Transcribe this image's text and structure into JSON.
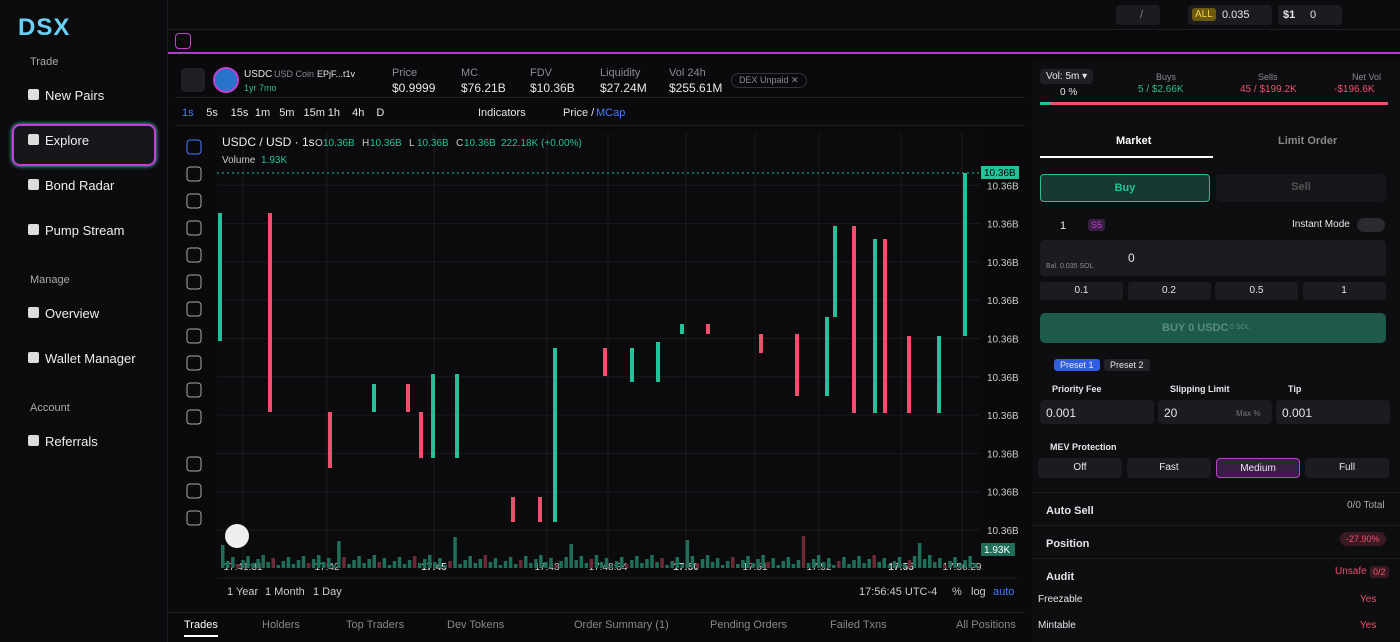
{
  "sidebar": {
    "logo": "DSX",
    "sections": [
      {
        "title": "Trade",
        "items": [
          "New Pairs",
          "Explore",
          "Bond Radar",
          "Pump Stream"
        ]
      },
      {
        "title": "Manage",
        "items": [
          "Overview",
          "Wallet Manager"
        ]
      },
      {
        "title": "Account",
        "items": [
          "Referrals"
        ]
      }
    ]
  },
  "topbar": {
    "search_key": "/",
    "all_label": "ALL",
    "all_value": "0.035",
    "s_label": "$1",
    "s_value": "0"
  },
  "token": {
    "symbol": "USDC",
    "name": "USD Coin",
    "address": "EPjF...t1v",
    "age": "1yr 7mo",
    "stats": [
      {
        "label": "Price",
        "value": "$0.9999"
      },
      {
        "label": "MC",
        "value": "$76.21B"
      },
      {
        "label": "FDV",
        "value": "$10.36B"
      },
      {
        "label": "Liquidity",
        "value": "$27.24M"
      },
      {
        "label": "Vol 24h",
        "value": "$255.61M"
      }
    ],
    "dex": "DEX Unpaid ✕"
  },
  "chart_toolbar": {
    "intervals": [
      "1s",
      "5s",
      "15s",
      "1m",
      "5m",
      "15m",
      "1h",
      "4h",
      "D"
    ],
    "indicators": "Indicators",
    "price": "Price /",
    "mcap": "MCap"
  },
  "chart": {
    "pair": "USDC / USD · 1s",
    "ohlc": [
      {
        "key": "O",
        "value": "10.36B"
      },
      {
        "key": "H",
        "value": "10.36B"
      },
      {
        "key": "L",
        "value": "10.36B"
      },
      {
        "key": "C",
        "value": "10.36B"
      }
    ],
    "change": "222.18K (+0.00%)",
    "volume_label": "Volume",
    "volume_value": "1.93K",
    "yticks": [
      "10.36B",
      "10.36B",
      "10.36B",
      "10.36B",
      "10.36B",
      "10.36B",
      "10.36B",
      "10.36B",
      "10.36B",
      "10.36B"
    ],
    "price_tag": "10.36B",
    "vol_tag": "1.93K",
    "xticks": [
      "17:41:31",
      "17:42",
      "17:45",
      "17:48",
      "17:48:34",
      "17:50",
      "17:51",
      "17:52",
      "17:55",
      "17:56:29"
    ]
  },
  "chart_footer": {
    "ranges": [
      "1 Year",
      "1 Month",
      "1 Day"
    ],
    "clock": "17:56:45 UTC-4",
    "pct": "%",
    "log": "log",
    "auto": "auto"
  },
  "bottom_tabs": [
    "Trades",
    "Holders",
    "Top Traders",
    "Dev Tokens",
    "Order Summary (1)",
    "Pending Orders",
    "Failed Txns",
    "All Positions"
  ],
  "panel": {
    "vol": "Vol: 5m ▾",
    "vol_pct": "0 %",
    "buys_label": "Buys",
    "buys": "5 / $2.66K",
    "sells_label": "Sells",
    "sells": "45 / $199.2K",
    "net_label": "Net Vol",
    "net": "-$196.6K",
    "order_tabs": [
      "Market",
      "Limit Order"
    ],
    "sides": [
      "Buy",
      "Sell"
    ],
    "wallet_count": "1",
    "preset_tag": "S5",
    "instant": "Instant Mode",
    "bal": "Bal. 0.035 SOL",
    "amount": "0",
    "quick": [
      "0.1",
      "0.2",
      "0.5",
      "1"
    ],
    "buy_button": "BUY 0 USDC",
    "buy_sub": "0 SOL",
    "presets": [
      "Preset 1",
      "Preset 2"
    ],
    "fees": [
      {
        "label": "Priority Fee",
        "value": "0.001"
      },
      {
        "label": "Slipping Limit",
        "value": "20",
        "suffix": "Max %"
      },
      {
        "label": "Tip",
        "value": "0.001"
      }
    ],
    "mev_label": "MEV Protection",
    "mev": [
      "Off",
      "Fast",
      "Medium",
      "Full"
    ],
    "auto_sell": "Auto Sell",
    "auto_sell_value": "0/0 Total",
    "position": "Position",
    "position_value": "-27.90%",
    "audit": "Audit",
    "unsafe": "Unsafe",
    "unsafe_count": "0/2",
    "audit_rows": [
      {
        "label": "Freezable",
        "value": "Yes"
      },
      {
        "label": "Mintable",
        "value": "Yes"
      }
    ]
  }
}
